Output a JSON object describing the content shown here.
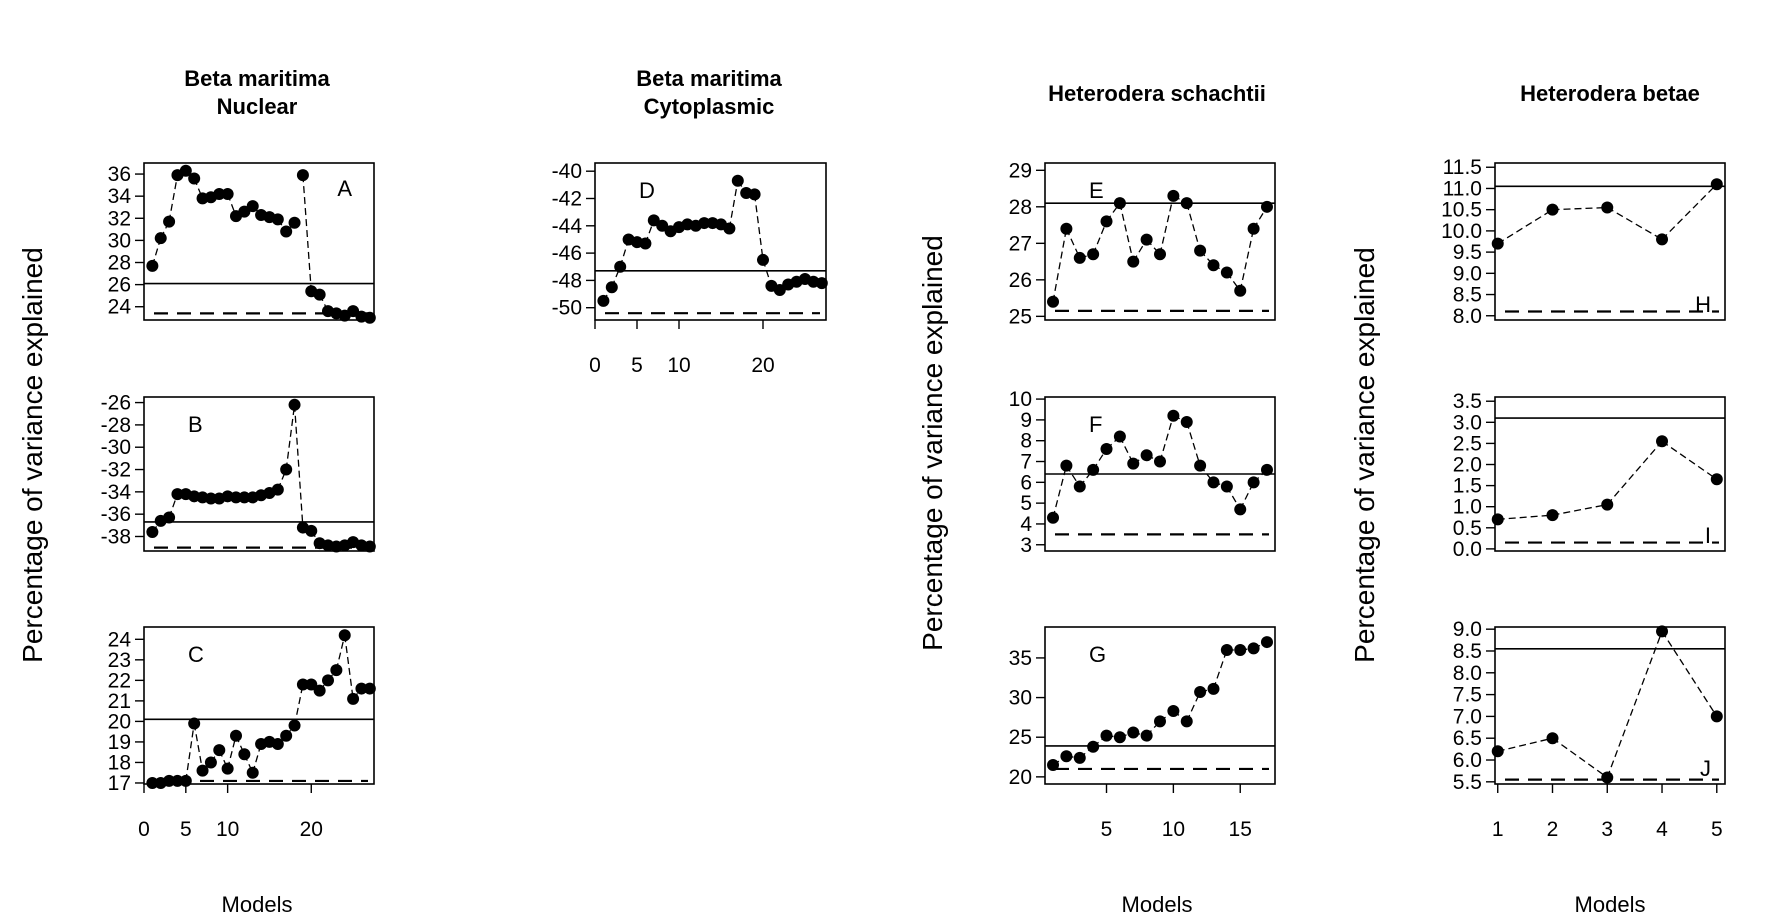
{
  "figure": {
    "column_titles": [
      [
        "Beta maritima",
        "Nuclear"
      ],
      [
        "Beta maritima",
        "Cytoplasmic"
      ],
      [
        "Heterodera schachtii"
      ],
      [
        "Heterodera betae"
      ]
    ],
    "ylabel": "Percentage of variance explained",
    "xlabel": "Models"
  },
  "chart_data": [
    {
      "type": "scatter",
      "panel": "A",
      "label_position": "top-right",
      "x": [
        1,
        2,
        3,
        4,
        5,
        6,
        7,
        8,
        9,
        10,
        11,
        12,
        13,
        14,
        15,
        16,
        17,
        18,
        19,
        20,
        21,
        22,
        23,
        24,
        25,
        26,
        27
      ],
      "y": [
        27.7,
        30.2,
        31.7,
        35.9,
        36.3,
        35.6,
        33.8,
        33.9,
        34.2,
        34.2,
        32.2,
        32.6,
        33.1,
        32.3,
        32.1,
        31.9,
        30.8,
        31.6,
        35.9,
        25.4,
        25.1,
        23.6,
        23.4,
        23.2,
        23.6,
        23.1,
        23.0
      ],
      "xlim": [
        0,
        27.5
      ],
      "ylim": [
        22.8,
        37
      ],
      "yticks": [
        24,
        26,
        28,
        30,
        32,
        34,
        36
      ],
      "xticks": [],
      "solid_line": 26.1,
      "dashed_line": 23.4,
      "segments": [
        [
          1,
          5
        ],
        [
          6,
          18
        ],
        [
          19,
          20
        ],
        [
          20,
          27
        ]
      ]
    },
    {
      "type": "scatter",
      "panel": "B",
      "label_position": "top-left",
      "x": [
        1,
        2,
        3,
        4,
        5,
        6,
        7,
        8,
        9,
        10,
        11,
        12,
        13,
        14,
        15,
        16,
        17,
        18,
        19,
        20,
        21,
        22,
        23,
        24,
        25,
        26,
        27
      ],
      "y": [
        -37.6,
        -36.6,
        -36.3,
        -34.2,
        -34.2,
        -34.4,
        -34.5,
        -34.6,
        -34.6,
        -34.4,
        -34.5,
        -34.5,
        -34.5,
        -34.3,
        -34.1,
        -33.8,
        -32.0,
        -26.2,
        -37.2,
        -37.5,
        -38.6,
        -38.8,
        -38.9,
        -38.8,
        -38.5,
        -38.8,
        -38.9
      ],
      "xlim": [
        0,
        27.5
      ],
      "ylim": [
        -39.3,
        -25.5
      ],
      "yticks": [
        -38,
        -36,
        -34,
        -32,
        -30,
        -28,
        -26
      ],
      "xticks": [],
      "solid_line": -36.7,
      "dashed_line": -39.0,
      "segments": [
        [
          1,
          3
        ],
        [
          3,
          4
        ],
        [
          4,
          17
        ],
        [
          17,
          18
        ],
        [
          18,
          19
        ],
        [
          19,
          27
        ]
      ]
    },
    {
      "type": "scatter",
      "panel": "C",
      "label_position": "top-left",
      "x": [
        1,
        2,
        3,
        4,
        5,
        6,
        7,
        8,
        9,
        10,
        11,
        12,
        13,
        14,
        15,
        16,
        17,
        18,
        19,
        20,
        21,
        22,
        23,
        24,
        25,
        26,
        27
      ],
      "y": [
        17.0,
        17.0,
        17.1,
        17.1,
        17.1,
        19.9,
        17.6,
        18.0,
        18.6,
        17.7,
        19.3,
        18.4,
        17.5,
        18.9,
        19.0,
        18.9,
        19.3,
        19.8,
        21.8,
        21.8,
        21.5,
        22.0,
        22.5,
        24.2,
        21.1,
        21.6,
        21.6
      ],
      "xlim": [
        0,
        27.5
      ],
      "ylim": [
        16.95,
        24.6
      ],
      "yticks": [
        17,
        18,
        19,
        20,
        21,
        22,
        23,
        24
      ],
      "xticks": [
        0,
        5,
        10,
        20
      ],
      "solid_line": 20.1,
      "dashed_line": 17.1,
      "segments": [
        [
          1,
          5
        ],
        [
          5,
          6
        ],
        [
          6,
          7
        ],
        [
          7,
          18
        ],
        [
          18,
          19
        ],
        [
          19,
          24
        ],
        [
          24,
          26
        ]
      ]
    },
    {
      "type": "scatter",
      "panel": "D",
      "label_position": "top-left",
      "x": [
        1,
        2,
        3,
        4,
        5,
        6,
        7,
        8,
        9,
        10,
        11,
        12,
        13,
        14,
        15,
        16,
        17,
        18,
        19,
        20,
        21,
        22,
        23,
        24,
        25,
        26,
        27
      ],
      "y": [
        -49.5,
        -48.5,
        -47.0,
        -45.0,
        -45.2,
        -45.3,
        -43.6,
        -44.0,
        -44.4,
        -44.1,
        -43.9,
        -44.0,
        -43.8,
        -43.8,
        -43.9,
        -44.2,
        -40.7,
        -41.6,
        -41.7,
        -46.5,
        -48.4,
        -48.7,
        -48.3,
        -48.1,
        -47.9,
        -48.1,
        -48.2
      ],
      "xlim": [
        0,
        27.5
      ],
      "ylim": [
        -50.9,
        -39.4
      ],
      "yticks": [
        -50,
        -48,
        -46,
        -44,
        -42,
        -40
      ],
      "xticks": [
        0,
        5,
        10,
        20
      ],
      "solid_line": -47.3,
      "dashed_line": -50.4,
      "segments": [
        [
          1,
          3
        ],
        [
          3,
          4
        ],
        [
          4,
          5
        ],
        [
          5,
          6
        ],
        [
          6,
          16
        ],
        [
          16,
          17
        ],
        [
          17,
          19
        ],
        [
          19,
          20
        ],
        [
          20,
          27
        ]
      ]
    },
    {
      "type": "scatter",
      "panel": "E",
      "label_position": "top-left",
      "x": [
        1,
        2,
        3,
        4,
        5,
        6,
        7,
        8,
        9,
        10,
        11,
        12,
        13,
        14,
        15,
        16,
        17
      ],
      "y": [
        25.4,
        27.4,
        26.6,
        26.7,
        27.6,
        28.1,
        26.5,
        27.1,
        26.7,
        28.3,
        28.1,
        26.8,
        26.4,
        26.2,
        25.7,
        27.4,
        28.0
      ],
      "xlim": [
        0.4,
        17.6
      ],
      "ylim": [
        24.9,
        29.2
      ],
      "yticks": [
        25,
        26,
        27,
        28,
        29
      ],
      "xticks": [],
      "solid_line": 28.1,
      "dashed_line": 25.15,
      "segments": [
        [
          1,
          17
        ]
      ]
    },
    {
      "type": "scatter",
      "panel": "F",
      "label_position": "top-left",
      "x": [
        1,
        2,
        3,
        4,
        5,
        6,
        7,
        8,
        9,
        10,
        11,
        12,
        13,
        14,
        15,
        16,
        17
      ],
      "y": [
        4.3,
        6.8,
        5.8,
        6.6,
        7.6,
        8.2,
        6.9,
        7.3,
        7.0,
        9.2,
        8.9,
        6.8,
        6.0,
        5.8,
        4.7,
        6.0,
        6.6
      ],
      "xlim": [
        0.4,
        17.6
      ],
      "ylim": [
        2.7,
        10.1
      ],
      "yticks": [
        3,
        4,
        5,
        6,
        7,
        8,
        9,
        10
      ],
      "xticks": [],
      "solid_line": 6.4,
      "dashed_line": 3.5,
      "segments": [
        [
          1,
          17
        ]
      ]
    },
    {
      "type": "scatter",
      "panel": "G",
      "label_position": "top-left",
      "x": [
        1,
        2,
        3,
        4,
        5,
        6,
        7,
        8,
        9,
        10,
        11,
        12,
        13,
        14,
        15,
        16,
        17
      ],
      "y": [
        21.5,
        22.6,
        22.4,
        23.8,
        25.2,
        25.0,
        25.6,
        25.2,
        27.0,
        28.3,
        27.0,
        30.7,
        31.1,
        36.0,
        36.0,
        36.2,
        37.0
      ],
      "xlim": [
        0.4,
        17.6
      ],
      "ylim": [
        19.1,
        38.9
      ],
      "yticks": [
        20,
        25,
        30,
        35
      ],
      "xticks": [
        5,
        10,
        15
      ],
      "solid_line": 23.9,
      "dashed_line": 21.0,
      "segments": [
        [
          1,
          17
        ]
      ]
    },
    {
      "type": "scatter",
      "panel": "H",
      "label_position": "bottom-right",
      "x": [
        1,
        2,
        3,
        4,
        5
      ],
      "y": [
        9.7,
        10.5,
        10.55,
        9.8,
        11.1
      ],
      "xlim": [
        0.95,
        5.15
      ],
      "ylim": [
        7.9,
        11.6
      ],
      "yticks": [
        8.0,
        8.5,
        9.0,
        9.5,
        10.0,
        10.5,
        11.0,
        11.5
      ],
      "xticks": [],
      "solid_line": 11.05,
      "dashed_line": 8.1,
      "segments": [
        [
          1,
          5
        ]
      ]
    },
    {
      "type": "scatter",
      "panel": "I",
      "label_position": "bottom-right",
      "x": [
        1,
        2,
        3,
        4,
        5
      ],
      "y": [
        0.7,
        0.8,
        1.05,
        2.55,
        1.65
      ],
      "xlim": [
        0.95,
        5.15
      ],
      "ylim": [
        -0.05,
        3.6
      ],
      "yticks": [
        0.0,
        0.5,
        1.0,
        1.5,
        2.0,
        2.5,
        3.0,
        3.5
      ],
      "xticks": [],
      "solid_line": 3.1,
      "dashed_line": 0.15,
      "segments": [
        [
          1,
          5
        ]
      ]
    },
    {
      "type": "scatter",
      "panel": "J",
      "label_position": "bottom-right",
      "x": [
        1,
        2,
        3,
        4,
        5
      ],
      "y": [
        6.2,
        6.5,
        5.6,
        8.95,
        7.0
      ],
      "xlim": [
        0.95,
        5.15
      ],
      "ylim": [
        5.45,
        9.05
      ],
      "yticks": [
        5.5,
        6.0,
        6.5,
        7.0,
        7.5,
        8.0,
        8.5,
        9.0
      ],
      "xticks": [
        1,
        2,
        3,
        4,
        5
      ],
      "solid_line": 8.55,
      "dashed_line": 5.55,
      "segments": [
        [
          1,
          5
        ]
      ]
    }
  ]
}
